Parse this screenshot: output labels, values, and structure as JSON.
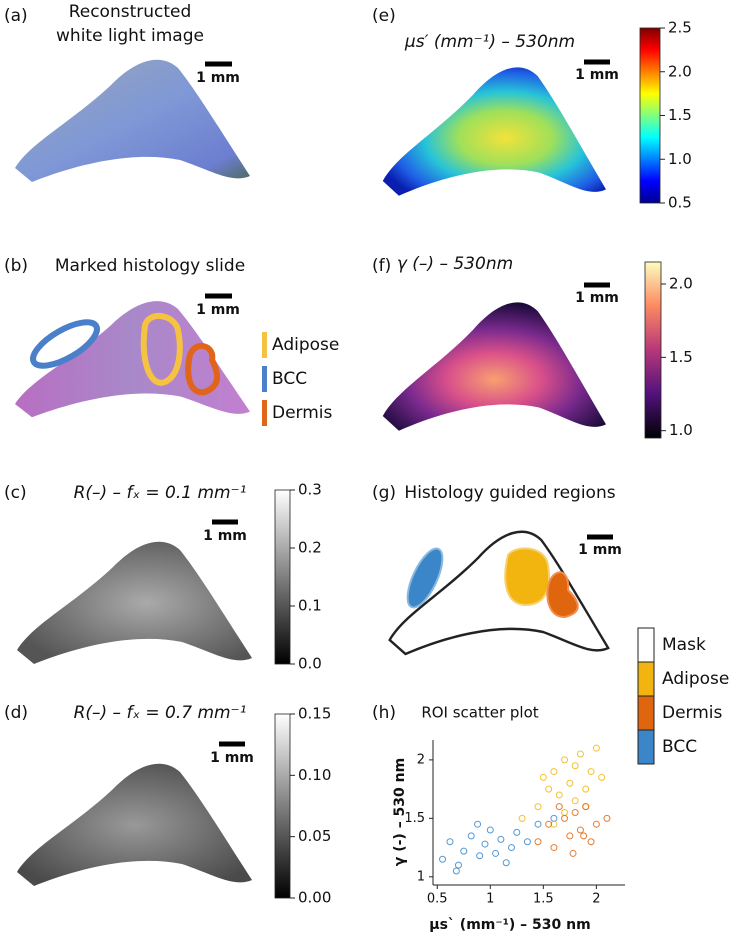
{
  "panel_a": {
    "label": "(a)",
    "title": [
      "Reconstructed",
      "white light image"
    ],
    "scale_bar": "1 mm"
  },
  "panel_b": {
    "label": "(b)",
    "title": "Marked histology slide",
    "scale_bar": "1 mm",
    "legend": [
      {
        "name": "Adipose",
        "color": "#f5c242"
      },
      {
        "name": "BCC",
        "color": "#4a7fc9"
      },
      {
        "name": "Dermis",
        "color": "#e0651a"
      }
    ]
  },
  "panel_c": {
    "label": "(c)",
    "title": "R(–) – fₓ = 0.1 mm⁻¹",
    "scale_bar": "1 mm",
    "colorbar": {
      "lim": [
        0,
        0.3
      ],
      "ticks": [
        0.3,
        0.2,
        0.1,
        {
          "value": 0,
          "label": "0.0"
        }
      ]
    }
  },
  "panel_d": {
    "label": "(d)",
    "title": "R(–) – fₓ = 0.7 mm⁻¹",
    "scale_bar": "1 mm",
    "colorbar": {
      "lim": [
        0,
        0.15
      ],
      "ticks": [
        0.15,
        {
          "value": 0.1,
          "label": "0.10"
        },
        0.05,
        {
          "value": 0,
          "label": "0.00"
        }
      ]
    }
  },
  "panel_e": {
    "label": "(e)",
    "title": "μs′ (mm⁻¹) – 530nm",
    "scale_bar": "1 mm",
    "colorbar": {
      "lim": [
        0.5,
        2.5
      ],
      "ticks": [
        2.5,
        {
          "value": 2,
          "label": "2.0"
        },
        1.5,
        {
          "value": 1,
          "label": "1.0"
        },
        0.5
      ]
    }
  },
  "panel_f": {
    "label": "(f)",
    "title": "γ (–) – 530nm",
    "scale_bar": "1 mm",
    "colorbar": {
      "lim": [
        0.95,
        2.15
      ],
      "ticks": [
        {
          "value": 2,
          "label": "2.0"
        },
        1.5,
        {
          "value": 1,
          "label": "1.0"
        }
      ]
    }
  },
  "panel_g": {
    "label": "(g)",
    "title": "Histology guided regions",
    "scale_bar": "1 mm",
    "legend": [
      {
        "name": "Mask",
        "color": "#ffffff"
      },
      {
        "name": "Adipose",
        "color": "#f2b50f"
      },
      {
        "name": "Dermis",
        "color": "#e0650f"
      },
      {
        "name": "BCC",
        "color": "#3a86c8"
      }
    ]
  },
  "panel_h": {
    "label": "(h)",
    "title": "ROI scatter plot",
    "xlabel": "μs` (mm⁻¹) – 530 nm",
    "ylabel": "γ (-) – 530 nm",
    "xlim": [
      0.46,
      2.27
    ],
    "ylim": [
      0.93,
      2.17
    ],
    "xticks": [
      0.5,
      1,
      1.5,
      2
    ],
    "yticks": [
      1,
      1.5,
      2
    ],
    "series": [
      {
        "name": "BCC",
        "color": "#3a86c8",
        "x": [
          0.55,
          0.62,
          0.7,
          0.75,
          0.82,
          0.9,
          0.95,
          1.0,
          1.05,
          1.1,
          1.2,
          1.25,
          1.35,
          1.45,
          1.6,
          0.68,
          0.88,
          1.15
        ],
        "y": [
          1.15,
          1.3,
          1.1,
          1.22,
          1.35,
          1.18,
          1.28,
          1.4,
          1.2,
          1.32,
          1.25,
          1.38,
          1.3,
          1.45,
          1.5,
          1.05,
          1.45,
          1.12
        ]
      },
      {
        "name": "Adipose",
        "color": "#f2b50f",
        "x": [
          1.3,
          1.45,
          1.55,
          1.6,
          1.65,
          1.7,
          1.75,
          1.8,
          1.85,
          1.9,
          1.95,
          2.0,
          2.05,
          1.7,
          1.6,
          1.8,
          1.5,
          1.9
        ],
        "y": [
          1.5,
          1.6,
          1.75,
          1.9,
          1.7,
          2.0,
          1.8,
          1.95,
          2.05,
          1.75,
          1.9,
          2.1,
          1.85,
          1.55,
          1.45,
          1.65,
          1.85,
          1.6
        ]
      },
      {
        "name": "Dermis",
        "color": "#e0650f",
        "x": [
          1.45,
          1.55,
          1.6,
          1.7,
          1.75,
          1.8,
          1.85,
          1.9,
          2.0,
          2.1,
          1.65,
          1.95,
          1.78,
          1.88
        ],
        "y": [
          1.3,
          1.45,
          1.25,
          1.5,
          1.35,
          1.55,
          1.4,
          1.6,
          1.45,
          1.5,
          1.6,
          1.3,
          1.2,
          1.35
        ]
      }
    ]
  }
}
